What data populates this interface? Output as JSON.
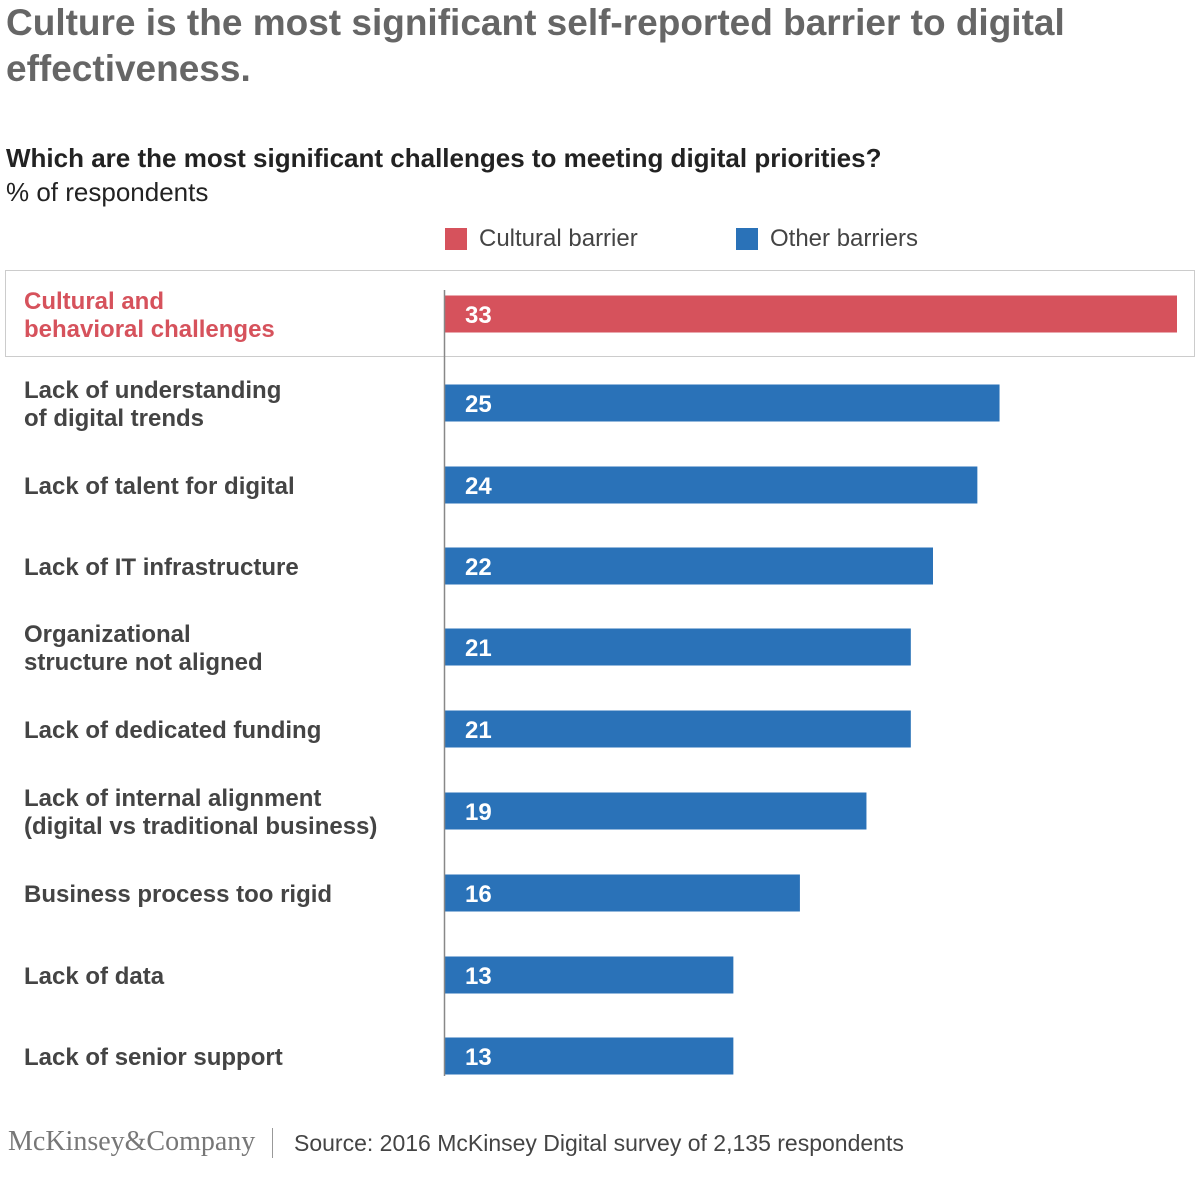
{
  "chart_data": {
    "type": "bar",
    "orientation": "horizontal",
    "title": "Culture is the most significant self-reported barrier to digital effectiveness.",
    "subtitle": "Which are the most significant challenges to meeting digital priorities?",
    "unit_label": "% of respondents",
    "legend": [
      {
        "label": "Cultural barrier",
        "color": "#d6525c"
      },
      {
        "label": "Other barriers",
        "color": "#2a72b8"
      }
    ],
    "categories": [
      [
        "Cultural and",
        "behavioral challenges"
      ],
      [
        "Lack of understanding",
        "of digital trends"
      ],
      [
        "Lack of talent for digital"
      ],
      [
        "Lack of IT infrastructure"
      ],
      [
        "Organizational",
        "structure not aligned"
      ],
      [
        "Lack of dedicated funding"
      ],
      [
        "Lack of internal alignment",
        "(digital vs traditional business)"
      ],
      [
        "Business process too rigid"
      ],
      [
        "Lack of data"
      ],
      [
        "Lack of senior support"
      ]
    ],
    "values": [
      33,
      25,
      24,
      22,
      21,
      21,
      19,
      16,
      13,
      13
    ],
    "series_index": [
      0,
      1,
      1,
      1,
      1,
      1,
      1,
      1,
      1,
      1
    ],
    "highlighted_index": 0,
    "xlim": [
      0,
      33
    ]
  },
  "footer": {
    "logo": "McKinsey&Company",
    "source": "Source: 2016 McKinsey Digital survey of 2,135 respondents"
  }
}
